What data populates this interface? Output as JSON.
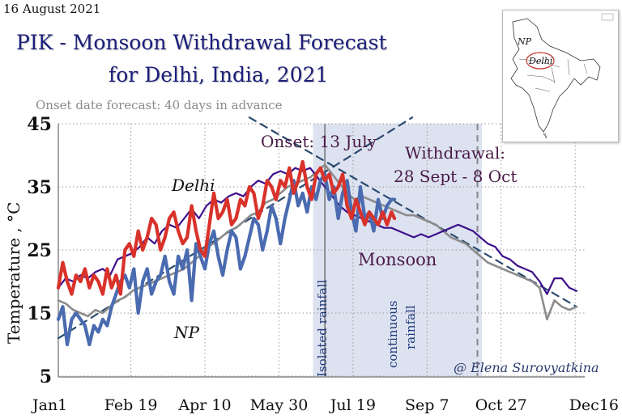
{
  "header": {
    "date": "16 August 2021",
    "title_line1": "PIK - Monsoon Withdrawal Forecast",
    "title_line2": "for Delhi, India, 2021",
    "subtitle": "Onset date forecast: 40 days in advance"
  },
  "map_inset": {
    "label_np": "NP",
    "label_delhi": "Delhi"
  },
  "colors": {
    "delhi_2021": "#d9322a",
    "np_2021": "#4a6bb0",
    "delhi_clim": "#3d0f8a",
    "np_clim": "#8c8c8c",
    "trend": "#2b4a6e",
    "monsoon_band": "#dde2f0",
    "title": "#1b1f7a",
    "annotation": "#4a1a48"
  },
  "chart_data": {
    "type": "line",
    "title": "PIK - Monsoon Withdrawal Forecast for Delhi, India, 2021",
    "xlabel": "",
    "ylabel": "Temperature , °C",
    "x_unit": "day of year",
    "xlim": [
      1,
      351
    ],
    "ylim": [
      5,
      45
    ],
    "yticks": [
      5,
      15,
      25,
      35,
      45
    ],
    "xticks": [
      {
        "day": 1,
        "label": "Jan1"
      },
      {
        "day": 50,
        "label": "Feb 19"
      },
      {
        "day": 100,
        "label": "Apr 10"
      },
      {
        "day": 150,
        "label": "May 30"
      },
      {
        "day": 200,
        "label": "Jul 19"
      },
      {
        "day": 250,
        "label": "Sep 7"
      },
      {
        "day": 300,
        "label": "Oct 27"
      },
      {
        "day": 350,
        "label": "Dec16"
      }
    ],
    "grid": true,
    "monsoon_band": {
      "start_day": 173,
      "end_day": 287
    },
    "onset_line_day": 181,
    "withdrawal_line_day": 284,
    "series": [
      {
        "name": "Delhi climatology",
        "style": "thin",
        "x": [
          1,
          6,
          11,
          16,
          21,
          26,
          31,
          36,
          41,
          46,
          51,
          56,
          61,
          66,
          71,
          76,
          81,
          86,
          91,
          96,
          101,
          106,
          111,
          116,
          121,
          126,
          131,
          136,
          141,
          146,
          151,
          156,
          161,
          166,
          171,
          176,
          181,
          186,
          191,
          196,
          201,
          206,
          211,
          216,
          221,
          226,
          231,
          236,
          241,
          246,
          251,
          256,
          261,
          266,
          271,
          276,
          281,
          286,
          291,
          296,
          301,
          306,
          311,
          316,
          321,
          326,
          331,
          336,
          341,
          346,
          351
        ],
        "values": [
          19,
          20.5,
          20,
          21,
          20.5,
          21.5,
          22,
          21,
          23.5,
          24,
          24.5,
          25.5,
          27,
          26,
          28,
          29,
          28.5,
          30,
          31.5,
          30,
          32,
          33,
          32.5,
          33.5,
          34,
          33.5,
          35,
          36,
          35.5,
          37,
          37.5,
          37,
          38,
          37.5,
          38,
          36.5,
          35,
          33.5,
          32,
          31,
          30.5,
          30,
          29.5,
          29,
          28.5,
          28.5,
          28,
          27.5,
          27,
          27.5,
          27,
          27.5,
          28,
          28.5,
          29,
          28.5,
          28,
          27,
          26,
          25.5,
          24,
          23.5,
          22.5,
          22,
          21.5,
          20,
          18,
          20.5,
          20.5,
          19,
          18.5
        ]
      },
      {
        "name": "NP climatology",
        "style": "medium",
        "x": [
          1,
          6,
          11,
          16,
          21,
          26,
          31,
          36,
          41,
          46,
          51,
          56,
          61,
          66,
          71,
          76,
          81,
          86,
          91,
          96,
          101,
          106,
          111,
          116,
          121,
          126,
          131,
          136,
          141,
          146,
          151,
          156,
          161,
          166,
          171,
          176,
          181,
          186,
          191,
          196,
          201,
          206,
          211,
          216,
          221,
          226,
          231,
          236,
          241,
          246,
          251,
          256,
          261,
          266,
          271,
          276,
          281,
          286,
          291,
          296,
          301,
          306,
          311,
          316,
          321,
          326,
          331,
          336,
          341,
          346,
          351
        ],
        "values": [
          17,
          16.5,
          15.5,
          15,
          14.5,
          15.5,
          15,
          16,
          17,
          17.5,
          18.5,
          19,
          19.5,
          20,
          20.5,
          21,
          21.5,
          22,
          23,
          24,
          25.5,
          26,
          27,
          28,
          28.5,
          29.5,
          30.5,
          31,
          32.5,
          33,
          34,
          35,
          35.5,
          36,
          36.5,
          37.5,
          38.5,
          37,
          35.5,
          34,
          33,
          33.5,
          33,
          32.5,
          32,
          31.5,
          31,
          30.5,
          30.5,
          30,
          29.5,
          29,
          28,
          27,
          26.5,
          26,
          25,
          24,
          23,
          22.5,
          22,
          21.5,
          21,
          20.5,
          20,
          19,
          14,
          17,
          16,
          15.5,
          16
        ]
      },
      {
        "name": "Delhi 2021",
        "style": "thick",
        "x": [
          1,
          4,
          7,
          10,
          13,
          16,
          19,
          22,
          25,
          28,
          31,
          34,
          37,
          40,
          43,
          46,
          49,
          52,
          55,
          58,
          61,
          64,
          67,
          70,
          73,
          76,
          79,
          82,
          85,
          88,
          91,
          94,
          97,
          100,
          103,
          106,
          109,
          112,
          115,
          118,
          121,
          124,
          127,
          130,
          133,
          136,
          139,
          142,
          145,
          148,
          151,
          154,
          157,
          160,
          163,
          166,
          169,
          172,
          175,
          178,
          181,
          184,
          187,
          190,
          193,
          196,
          199,
          202,
          205,
          208,
          211,
          214,
          217,
          220,
          223,
          226,
          228
        ],
        "values": [
          19,
          23,
          20,
          18,
          21,
          20,
          22,
          19,
          21,
          20,
          18,
          22,
          19,
          21,
          18,
          25,
          26,
          24,
          28,
          25,
          27,
          30,
          29,
          25,
          27,
          30,
          31,
          28,
          26,
          27,
          32,
          28,
          25,
          24,
          29,
          34,
          30,
          31,
          33,
          29,
          30,
          33,
          32,
          35,
          34,
          30,
          32,
          36,
          35,
          33,
          36,
          35,
          38,
          34,
          36,
          39,
          35,
          33,
          37,
          38,
          36,
          37,
          34,
          35,
          37,
          32,
          30,
          33,
          31,
          29,
          31,
          30,
          29,
          31,
          29,
          31,
          30
        ]
      },
      {
        "name": "NP 2021",
        "style": "thick",
        "x": [
          1,
          4,
          7,
          10,
          13,
          16,
          19,
          22,
          25,
          28,
          31,
          34,
          37,
          40,
          43,
          46,
          49,
          52,
          55,
          58,
          61,
          64,
          67,
          70,
          73,
          76,
          79,
          82,
          85,
          88,
          91,
          94,
          97,
          100,
          103,
          106,
          109,
          112,
          115,
          118,
          121,
          124,
          127,
          130,
          133,
          136,
          139,
          142,
          145,
          148,
          151,
          154,
          157,
          160,
          163,
          166,
          169,
          172,
          175,
          178,
          181,
          184,
          187,
          190,
          193,
          196,
          199,
          202,
          205,
          208,
          211,
          214,
          217,
          220,
          223,
          226,
          228
        ],
        "values": [
          14,
          16,
          10,
          14,
          15,
          14,
          13,
          10,
          13,
          12,
          14,
          13,
          16,
          18,
          20,
          21,
          19,
          22,
          15,
          20,
          22,
          18,
          20,
          21,
          24,
          20,
          18,
          24,
          22,
          25,
          17,
          26,
          24,
          22,
          26,
          28,
          24,
          21,
          25,
          28,
          27,
          22,
          24,
          27,
          30,
          29,
          25,
          28,
          32,
          30,
          26,
          30,
          33,
          36,
          32,
          34,
          31,
          35,
          33,
          36,
          37,
          33,
          35,
          30,
          34,
          36,
          31,
          28,
          35,
          30,
          31,
          28,
          33,
          30,
          32,
          33,
          33
        ]
      },
      {
        "name": "Trend rising (dashed)",
        "style": "dashed",
        "x": [
          1,
          240
        ],
        "values": [
          11,
          46
        ]
      },
      {
        "name": "Trend falling (dashed)",
        "style": "dashed",
        "x": [
          130,
          351
        ],
        "values": [
          46,
          16
        ]
      }
    ],
    "annotations": [
      {
        "text": "Onset: 13 July"
      },
      {
        "text": "Withdrawal:"
      },
      {
        "text": "28 Sept - 8 Oct"
      },
      {
        "text": "Monsoon"
      },
      {
        "text": "Delhi"
      },
      {
        "text": "NP"
      },
      {
        "text": "Isolated rainfall"
      },
      {
        "text": "continuous"
      },
      {
        "text": "rainfall"
      },
      {
        "text": "@ Elena Surovyatkina"
      }
    ]
  }
}
